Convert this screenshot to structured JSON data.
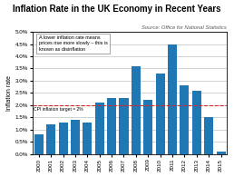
{
  "chart_data": {
    "type": "bar",
    "title": "Inflation Rate in the UK Economy in Recent Years",
    "source": "Source: Office for National Statistics",
    "ylabel": "Inflation rate",
    "categories": [
      "2000",
      "2001",
      "2002",
      "2003",
      "2004",
      "2005",
      "2006",
      "2007",
      "2008",
      "2009",
      "2010",
      "2011",
      "2012",
      "2013",
      "2014",
      "2015"
    ],
    "values": [
      0.8,
      1.2,
      1.3,
      1.4,
      1.3,
      2.1,
      2.3,
      2.3,
      3.6,
      2.2,
      3.3,
      4.5,
      2.8,
      2.6,
      1.5,
      0.1
    ],
    "target_line": 2.0,
    "target_label": "CPI inflation target = 2%",
    "annotation": "A lower inflation rate means\nprices rise more slowly – this is\nknown as disinflation",
    "ylim": [
      0,
      5.0
    ],
    "yticks": [
      {
        "value": 0.0,
        "label": "0.0%"
      },
      {
        "value": 0.5,
        "label": "0.5%"
      },
      {
        "value": 1.0,
        "label": "1.0%"
      },
      {
        "value": 1.5,
        "label": "1.5%"
      },
      {
        "value": 2.0,
        "label": "2.0%"
      },
      {
        "value": 2.5,
        "label": "2.5%"
      },
      {
        "value": 3.0,
        "label": "3.0%"
      },
      {
        "value": 3.5,
        "label": "3.5%"
      },
      {
        "value": 4.0,
        "label": "4.0%"
      },
      {
        "value": 4.5,
        "label": "4.5%"
      },
      {
        "value": 5.0,
        "label": "5.0%"
      }
    ],
    "grid": true
  }
}
